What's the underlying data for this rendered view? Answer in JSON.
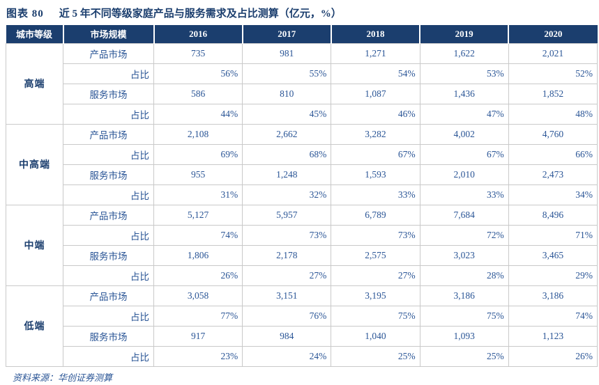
{
  "colors": {
    "header_bg": "#1b3e6e",
    "body_text": "#2a5596",
    "tier_text": "#1b3e6e",
    "grid": "#c9c9c9"
  },
  "title": {
    "figure_label": "图表 80",
    "text": "近 5 年不同等级家庭产品与服务需求及占比测算（亿元，%）"
  },
  "table": {
    "columns": [
      "城市等级",
      "市场规模",
      "2016",
      "2017",
      "2018",
      "2019",
      "2020"
    ],
    "sections": [
      {
        "tier": "高端",
        "rows": [
          {
            "label": "产品市场",
            "type": "market",
            "values": [
              "735",
              "981",
              "1,271",
              "1,622",
              "2,021"
            ]
          },
          {
            "label": "占比",
            "type": "ratio",
            "values": [
              "56%",
              "55%",
              "54%",
              "53%",
              "52%"
            ]
          },
          {
            "label": "服务市场",
            "type": "market",
            "values": [
              "586",
              "810",
              "1,087",
              "1,436",
              "1,852"
            ]
          },
          {
            "label": "占比",
            "type": "ratio",
            "values": [
              "44%",
              "45%",
              "46%",
              "47%",
              "48%"
            ]
          }
        ]
      },
      {
        "tier": "中高端",
        "rows": [
          {
            "label": "产品市场",
            "type": "market",
            "values": [
              "2,108",
              "2,662",
              "3,282",
              "4,002",
              "4,760"
            ]
          },
          {
            "label": "占比",
            "type": "ratio",
            "values": [
              "69%",
              "68%",
              "67%",
              "67%",
              "66%"
            ]
          },
          {
            "label": "服务市场",
            "type": "market",
            "values": [
              "955",
              "1,248",
              "1,593",
              "2,010",
              "2,473"
            ]
          },
          {
            "label": "占比",
            "type": "ratio",
            "values": [
              "31%",
              "32%",
              "33%",
              "33%",
              "34%"
            ]
          }
        ]
      },
      {
        "tier": "中端",
        "rows": [
          {
            "label": "产品市场",
            "type": "market",
            "values": [
              "5,127",
              "5,957",
              "6,789",
              "7,684",
              "8,496"
            ]
          },
          {
            "label": "占比",
            "type": "ratio",
            "values": [
              "74%",
              "73%",
              "73%",
              "72%",
              "71%"
            ]
          },
          {
            "label": "服务市场",
            "type": "market",
            "values": [
              "1,806",
              "2,178",
              "2,575",
              "3,023",
              "3,465"
            ]
          },
          {
            "label": "占比",
            "type": "ratio",
            "values": [
              "26%",
              "27%",
              "27%",
              "28%",
              "29%"
            ]
          }
        ]
      },
      {
        "tier": "低端",
        "rows": [
          {
            "label": "产品市场",
            "type": "market",
            "values": [
              "3,058",
              "3,151",
              "3,195",
              "3,186",
              "3,186"
            ]
          },
          {
            "label": "占比",
            "type": "ratio",
            "values": [
              "77%",
              "76%",
              "75%",
              "75%",
              "74%"
            ]
          },
          {
            "label": "服务市场",
            "type": "market",
            "values": [
              "917",
              "984",
              "1,040",
              "1,093",
              "1,123"
            ]
          },
          {
            "label": "占比",
            "type": "ratio",
            "values": [
              "23%",
              "24%",
              "25%",
              "25%",
              "26%"
            ]
          }
        ]
      }
    ]
  },
  "footer": {
    "source": "资料来源：华创证券测算"
  },
  "chart_data": {
    "type": "table",
    "title": "图表 80 近 5 年不同等级家庭产品与服务需求及占比测算（亿元，%）",
    "columns": [
      "城市等级",
      "市场规模",
      "2016",
      "2017",
      "2018",
      "2019",
      "2020"
    ],
    "rows": [
      [
        "高端",
        "产品市场",
        735,
        981,
        1271,
        1622,
        2021
      ],
      [
        "高端",
        "占比",
        "56%",
        "55%",
        "54%",
        "53%",
        "52%"
      ],
      [
        "高端",
        "服务市场",
        586,
        810,
        1087,
        1436,
        1852
      ],
      [
        "高端",
        "占比",
        "44%",
        "45%",
        "46%",
        "47%",
        "48%"
      ],
      [
        "中高端",
        "产品市场",
        2108,
        2662,
        3282,
        4002,
        4760
      ],
      [
        "中高端",
        "占比",
        "69%",
        "68%",
        "67%",
        "67%",
        "66%"
      ],
      [
        "中高端",
        "服务市场",
        955,
        1248,
        1593,
        2010,
        2473
      ],
      [
        "中高端",
        "占比",
        "31%",
        "32%",
        "33%",
        "33%",
        "34%"
      ],
      [
        "中端",
        "产品市场",
        5127,
        5957,
        6789,
        7684,
        8496
      ],
      [
        "中端",
        "占比",
        "74%",
        "73%",
        "73%",
        "72%",
        "71%"
      ],
      [
        "中端",
        "服务市场",
        1806,
        2178,
        2575,
        3023,
        3465
      ],
      [
        "中端",
        "占比",
        "26%",
        "27%",
        "27%",
        "28%",
        "29%"
      ],
      [
        "低端",
        "产品市场",
        3058,
        3151,
        3195,
        3186,
        3186
      ],
      [
        "低端",
        "占比",
        "77%",
        "76%",
        "75%",
        "75%",
        "74%"
      ],
      [
        "低端",
        "服务市场",
        917,
        984,
        1040,
        1093,
        1123
      ],
      [
        "低端",
        "占比",
        "23%",
        "24%",
        "25%",
        "25%",
        "26%"
      ]
    ]
  }
}
